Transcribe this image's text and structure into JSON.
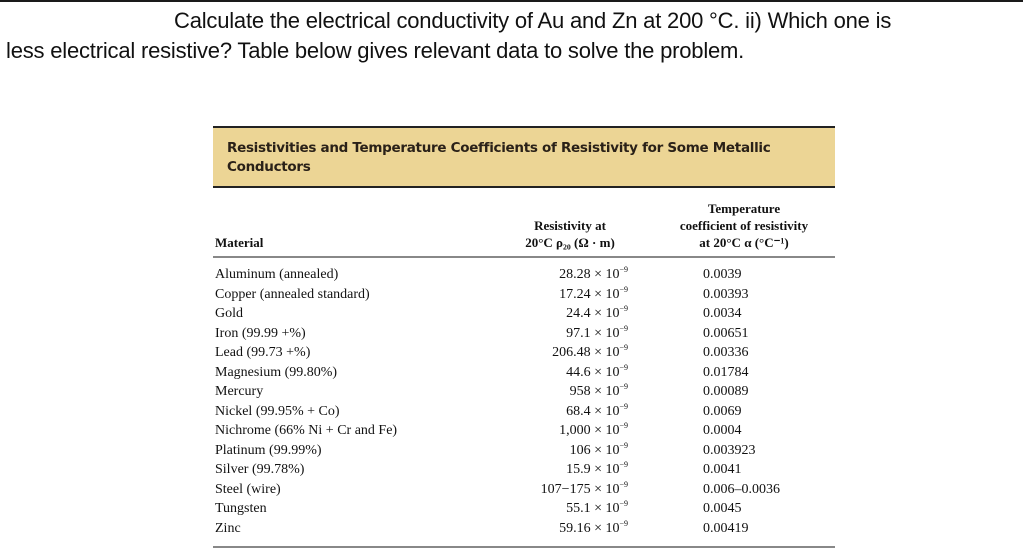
{
  "question": {
    "line1": "Calculate the electrical conductivity of Au and Zn at 200 °C.  ii) Which one is",
    "line2": "less electrical resistive? Table below gives relevant data to solve the problem."
  },
  "table": {
    "caption": "Resistivities and Temperature Coefficients of Resistivity for Some Metallic Conductors",
    "headers": {
      "material": "Material",
      "resistivity_line1": "Resistivity at",
      "resistivity_line2": "20°C ρ₂₀ (Ω · m)",
      "coef_line1": "Temperature",
      "coef_line2": "coefficient of resistivity",
      "coef_line3": "at 20°C α (°C⁻¹)"
    },
    "exponent": "−9",
    "times": " × 10",
    "rows": [
      {
        "material": "Aluminum (annealed)",
        "resistivity": "28.28",
        "coefficient": "0.0039"
      },
      {
        "material": "Copper (annealed standard)",
        "resistivity": "17.24",
        "coefficient": "0.00393"
      },
      {
        "material": "Gold",
        "resistivity": "24.4",
        "coefficient": "0.0034"
      },
      {
        "material": "Iron (99.99 +%)",
        "resistivity": "97.1",
        "coefficient": "0.00651"
      },
      {
        "material": "Lead (99.73 +%)",
        "resistivity": "206.48",
        "coefficient": "0.00336"
      },
      {
        "material": "Magnesium (99.80%)",
        "resistivity": "44.6",
        "coefficient": "0.01784"
      },
      {
        "material": "Mercury",
        "resistivity": "958",
        "coefficient": "0.00089"
      },
      {
        "material": "Nickel (99.95% + Co)",
        "resistivity": "68.4",
        "coefficient": "0.0069"
      },
      {
        "material": "Nichrome (66% Ni + Cr and Fe)",
        "resistivity": "1,000",
        "coefficient": "0.0004"
      },
      {
        "material": "Platinum (99.99%)",
        "resistivity": "106",
        "coefficient": "0.003923"
      },
      {
        "material": "Silver (99.78%)",
        "resistivity": "15.9",
        "coefficient": "0.0041"
      },
      {
        "material": "Steel (wire)",
        "resistivity": "107−175",
        "coefficient": "0.006–0.0036"
      },
      {
        "material": "Tungsten",
        "resistivity": "55.1",
        "coefficient": "0.0045"
      },
      {
        "material": "Zinc",
        "resistivity": "59.16",
        "coefficient": "0.00419"
      }
    ]
  },
  "colors": {
    "caption_background": "#ecd595",
    "text": "#111111"
  }
}
